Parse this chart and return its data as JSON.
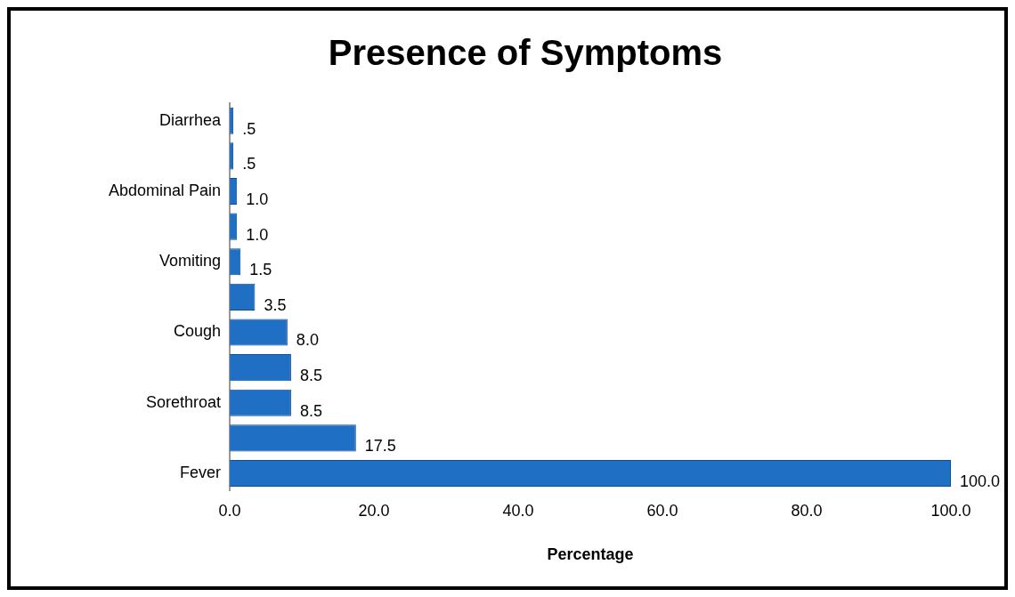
{
  "chart_data": {
    "type": "bar",
    "orientation": "horizontal",
    "title": "Presence of Symptoms",
    "xlabel": "Percentage",
    "categories": [
      "Diarrhea",
      null,
      "Abdominal Pain",
      null,
      "Vomiting",
      null,
      "Cough",
      null,
      "Sorethroat",
      null,
      "Fever"
    ],
    "values": [
      0.5,
      0.5,
      1.0,
      1.0,
      1.5,
      3.5,
      8.0,
      8.5,
      8.5,
      17.5,
      100.0
    ],
    "value_labels": [
      ".5",
      ".5",
      "1.0",
      "1.0",
      "1.5",
      "3.5",
      "8.0",
      "8.5",
      "8.5",
      "17.5",
      "100.0"
    ],
    "color": "#1f6fc5",
    "xlim": [
      0,
      100
    ],
    "xticks": [
      {
        "value": 0,
        "label": "0.0"
      },
      {
        "value": 20,
        "label": "20.0"
      },
      {
        "value": 40,
        "label": "40.0"
      },
      {
        "value": 60,
        "label": "60.0"
      },
      {
        "value": 80,
        "label": "80.0"
      },
      {
        "value": 100,
        "label": "100.0"
      }
    ],
    "grid": false,
    "legend": false
  }
}
